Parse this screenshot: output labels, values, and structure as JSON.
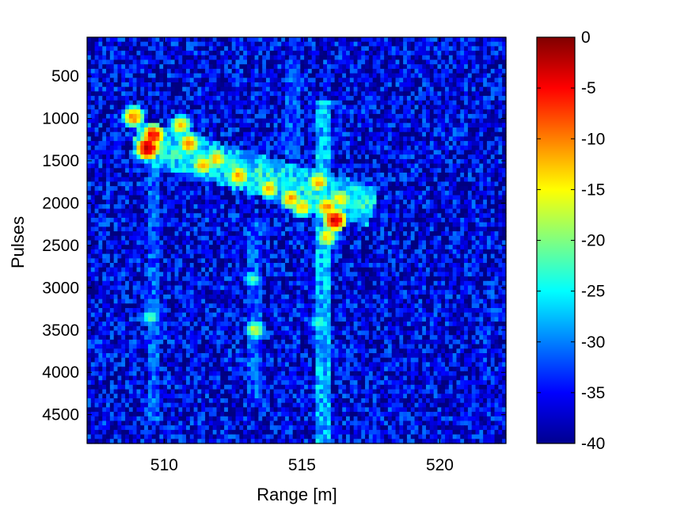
{
  "chart_data": {
    "type": "heatmap",
    "title": "",
    "xlabel": "Range [m]",
    "ylabel": "Pulses",
    "xlim": [
      507.2,
      522.4
    ],
    "ylim": [
      40,
      4840
    ],
    "y_reversed": true,
    "x_ticks": [
      510,
      515,
      520
    ],
    "y_ticks": [
      500,
      1000,
      1500,
      2000,
      2500,
      3000,
      3500,
      4000,
      4500
    ],
    "colormap": "jet",
    "colorbar": {
      "range": [
        -40,
        0
      ],
      "ticks": [
        0,
        -5,
        -10,
        -15,
        -20,
        -25,
        -30,
        -35,
        -40
      ],
      "placement": "right"
    },
    "background_level_db": -36,
    "features": [
      {
        "kind": "diagonal-streak",
        "from": {
          "range": 508.9,
          "pulse": 1250
        },
        "to": {
          "range": 517.6,
          "pulse": 2050
        },
        "level_db": -24
      },
      {
        "kind": "vertical-streak",
        "range": 515.8,
        "pulse_from": 800,
        "pulse_to": 4840,
        "level_db": -28
      },
      {
        "kind": "vertical-streak",
        "range": 513.3,
        "pulse_from": 2200,
        "pulse_to": 4300,
        "level_db": -32
      },
      {
        "kind": "vertical-streak",
        "range": 509.6,
        "pulse_from": 1500,
        "pulse_to": 4600,
        "level_db": -32
      },
      {
        "kind": "vertical-streak",
        "range": 514.7,
        "pulse_from": 300,
        "pulse_to": 1500,
        "level_db": -32
      }
    ],
    "peaks": [
      {
        "range": 509.4,
        "pulse": 1350,
        "level_db": -2
      },
      {
        "range": 509.6,
        "pulse": 1200,
        "level_db": -5
      },
      {
        "range": 508.9,
        "pulse": 980,
        "level_db": -10
      },
      {
        "range": 510.9,
        "pulse": 1300,
        "level_db": -10
      },
      {
        "range": 510.6,
        "pulse": 1080,
        "level_db": -13
      },
      {
        "range": 511.4,
        "pulse": 1550,
        "level_db": -12
      },
      {
        "range": 511.9,
        "pulse": 1480,
        "level_db": -13
      },
      {
        "range": 512.7,
        "pulse": 1680,
        "level_db": -11
      },
      {
        "range": 513.8,
        "pulse": 1830,
        "level_db": -13
      },
      {
        "range": 514.6,
        "pulse": 1950,
        "level_db": -11
      },
      {
        "range": 515.0,
        "pulse": 2050,
        "level_db": -13
      },
      {
        "range": 515.6,
        "pulse": 1750,
        "level_db": -12
      },
      {
        "range": 515.9,
        "pulse": 2050,
        "level_db": -10
      },
      {
        "range": 516.2,
        "pulse": 2200,
        "level_db": -3
      },
      {
        "range": 515.9,
        "pulse": 2400,
        "level_db": -14
      },
      {
        "range": 516.4,
        "pulse": 1950,
        "level_db": -14
      },
      {
        "range": 513.2,
        "pulse": 2900,
        "level_db": -22
      },
      {
        "range": 513.3,
        "pulse": 3500,
        "level_db": -17
      },
      {
        "range": 509.5,
        "pulse": 3350,
        "level_db": -22
      },
      {
        "range": 515.6,
        "pulse": 3400,
        "level_db": -23
      }
    ]
  }
}
